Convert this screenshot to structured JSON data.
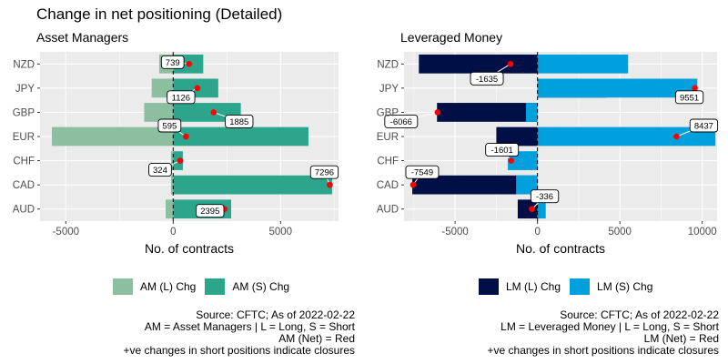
{
  "title": "Change in net positioning (Detailed)",
  "colors": {
    "panel_bg": "#EBEBEB",
    "grid": "#FFFFFF",
    "net_point": "#FF0000",
    "am_long": "#8BBF9F",
    "am_short": "#2CA58D",
    "lm_long": "#000F45",
    "lm_short": "#00A0DC"
  },
  "chart_data": [
    {
      "type": "bar",
      "orientation": "horizontal",
      "subtitle": "Asset Managers",
      "xlabel": "No. of contracts",
      "xlim": [
        -6200,
        7700
      ],
      "xticks": [
        -5000,
        0,
        5000
      ],
      "categories": [
        "NZD",
        "JPY",
        "GBP",
        "EUR",
        "CHF",
        "CAD",
        "AUD"
      ],
      "series": [
        {
          "name": "AM (L) Chg",
          "color": "#8BBF9F",
          "values": [
            -650,
            -1000,
            -1350,
            -5650,
            -100,
            -100,
            -350
          ]
        },
        {
          "name": "AM (S) Chg",
          "color": "#2CA58D",
          "values": [
            1400,
            2100,
            3150,
            6300,
            450,
            7400,
            2700
          ]
        }
      ],
      "net": [
        739,
        1126,
        1885,
        595,
        324,
        7296,
        2395
      ],
      "net_labels": [
        "739",
        "1126",
        "1885",
        "595",
        "324",
        "7296",
        "2395"
      ],
      "legend": [
        "AM (L) Chg",
        "AM (S) Chg"
      ],
      "legend_position": "bottom",
      "grid": true,
      "footnote": [
        "Source: CFTC; As of 2022-02-22",
        "AM = Asset Managers | L = Long, S = Short",
        "AM (Net) = Red",
        "+ve changes in short positions indicate closures"
      ]
    },
    {
      "type": "bar",
      "orientation": "horizontal",
      "subtitle": "Leveraged Money",
      "xlabel": "No. of contracts",
      "xlim": [
        -8100,
        10900
      ],
      "xticks": [
        -5000,
        0,
        5000,
        10000
      ],
      "categories": [
        "NZD",
        "JPY",
        "GBP",
        "EUR",
        "CHF",
        "CAD",
        "AUD"
      ],
      "series": [
        {
          "name": "LM (L) Chg",
          "color": "#000F45",
          "values": [
            -7200,
            4200,
            -6100,
            -2500,
            -100,
            -7600,
            -1200
          ]
        },
        {
          "name": "LM (S) Chg",
          "color": "#00A0DC",
          "values": [
            5500,
            9700,
            -700,
            10800,
            -1800,
            -1300,
            500
          ]
        }
      ],
      "net": [
        -1635,
        9551,
        -6066,
        8437,
        -1601,
        -7549,
        -336
      ],
      "net_labels": [
        "-1635",
        "9551",
        "-6066",
        "8437",
        "-1601",
        "-7549",
        "-336"
      ],
      "legend": [
        "LM (L) Chg",
        "LM (S) Chg"
      ],
      "legend_position": "bottom",
      "grid": true,
      "footnote": [
        "Source: CFTC; As of 2022-02-22",
        "LM = Leveraged Money | L = Long, S = Short",
        "LM (Net) = Red",
        "+ve changes in short positions indicate closures"
      ]
    }
  ]
}
